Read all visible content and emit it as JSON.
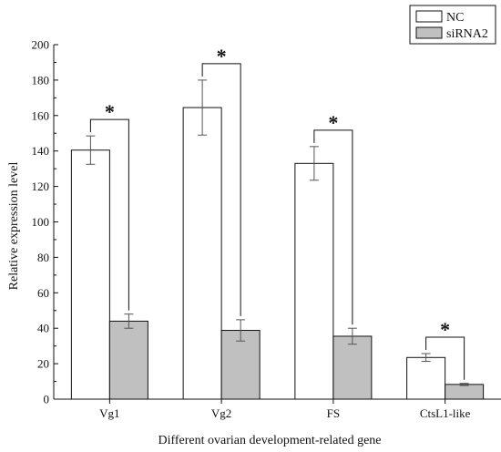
{
  "chart_data": {
    "type": "bar",
    "categories": [
      "Vg1",
      "Vg2",
      "FS",
      "CtsL1-like"
    ],
    "series": [
      {
        "name": "NC",
        "values": [
          140.5,
          164.5,
          133,
          23.5
        ],
        "errors": [
          8,
          15.5,
          9.5,
          2.2
        ],
        "color": "#ffffff"
      },
      {
        "name": "siRNA2",
        "values": [
          44,
          38.8,
          35.5,
          8.3
        ],
        "errors": [
          4,
          6,
          4.5,
          0.6
        ],
        "color": "#c0c0c0"
      }
    ],
    "significance": [
      "*",
      "*",
      "*",
      "*"
    ],
    "xlabel": "Different ovarian development-related gene",
    "ylabel": "Relative expression level",
    "ylim": [
      0,
      200
    ],
    "yticks": [
      0,
      20,
      40,
      60,
      80,
      100,
      120,
      140,
      160,
      180,
      200
    ],
    "grid": false,
    "legend_position": "top-right"
  }
}
